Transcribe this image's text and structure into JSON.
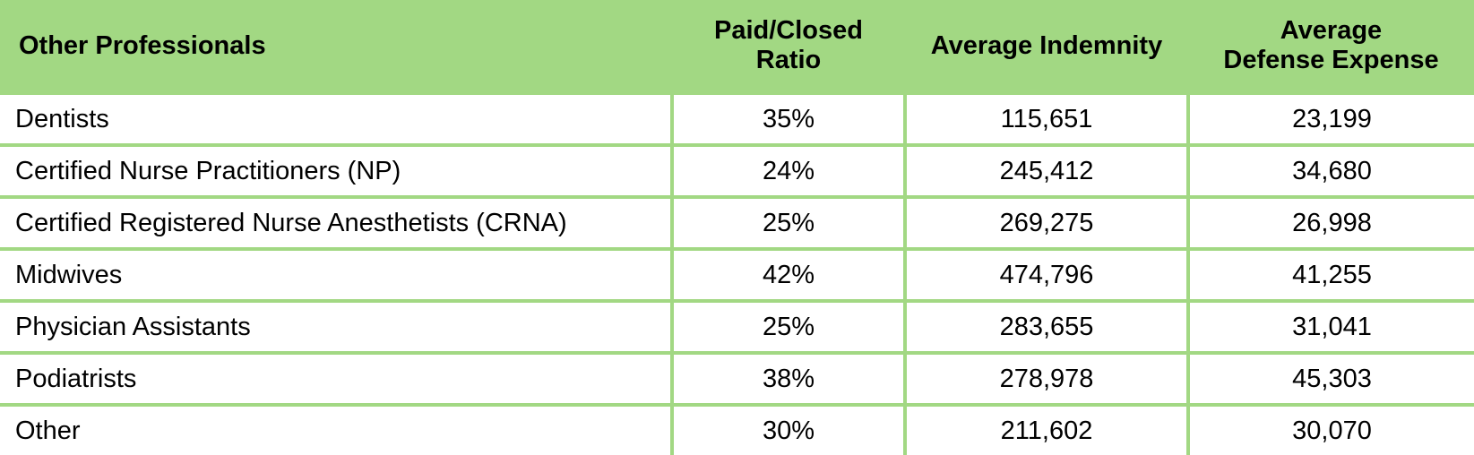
{
  "table": {
    "headers": [
      "Other Professionals",
      "Paid/Closed Ratio",
      "Average Indemnity",
      "Average Defense Expense"
    ],
    "header_lines": {
      "ratio": [
        "Paid/Closed",
        "Ratio"
      ],
      "defense": [
        "Average",
        "Defense Expense"
      ]
    },
    "rows": [
      [
        "Dentists",
        "35%",
        "115,651",
        "23,199"
      ],
      [
        "Certified Nurse Practitioners (NP)",
        "24%",
        "245,412",
        "34,680"
      ],
      [
        "Certified Registered Nurse Anesthetists (CRNA)",
        "25%",
        "269,275",
        "26,998"
      ],
      [
        "Midwives",
        "42%",
        "474,796",
        "41,255"
      ],
      [
        "Physician Assistants",
        "25%",
        "283,655",
        "31,041"
      ],
      [
        "Podiatrists",
        "38%",
        "278,978",
        "45,303"
      ],
      [
        "Other",
        "30%",
        "211,602",
        "30,070"
      ]
    ]
  },
  "colors": {
    "header_bg": "#a2d883",
    "grid": "#a2d883",
    "cell_bg": "#ffffff",
    "text": "#000000"
  }
}
